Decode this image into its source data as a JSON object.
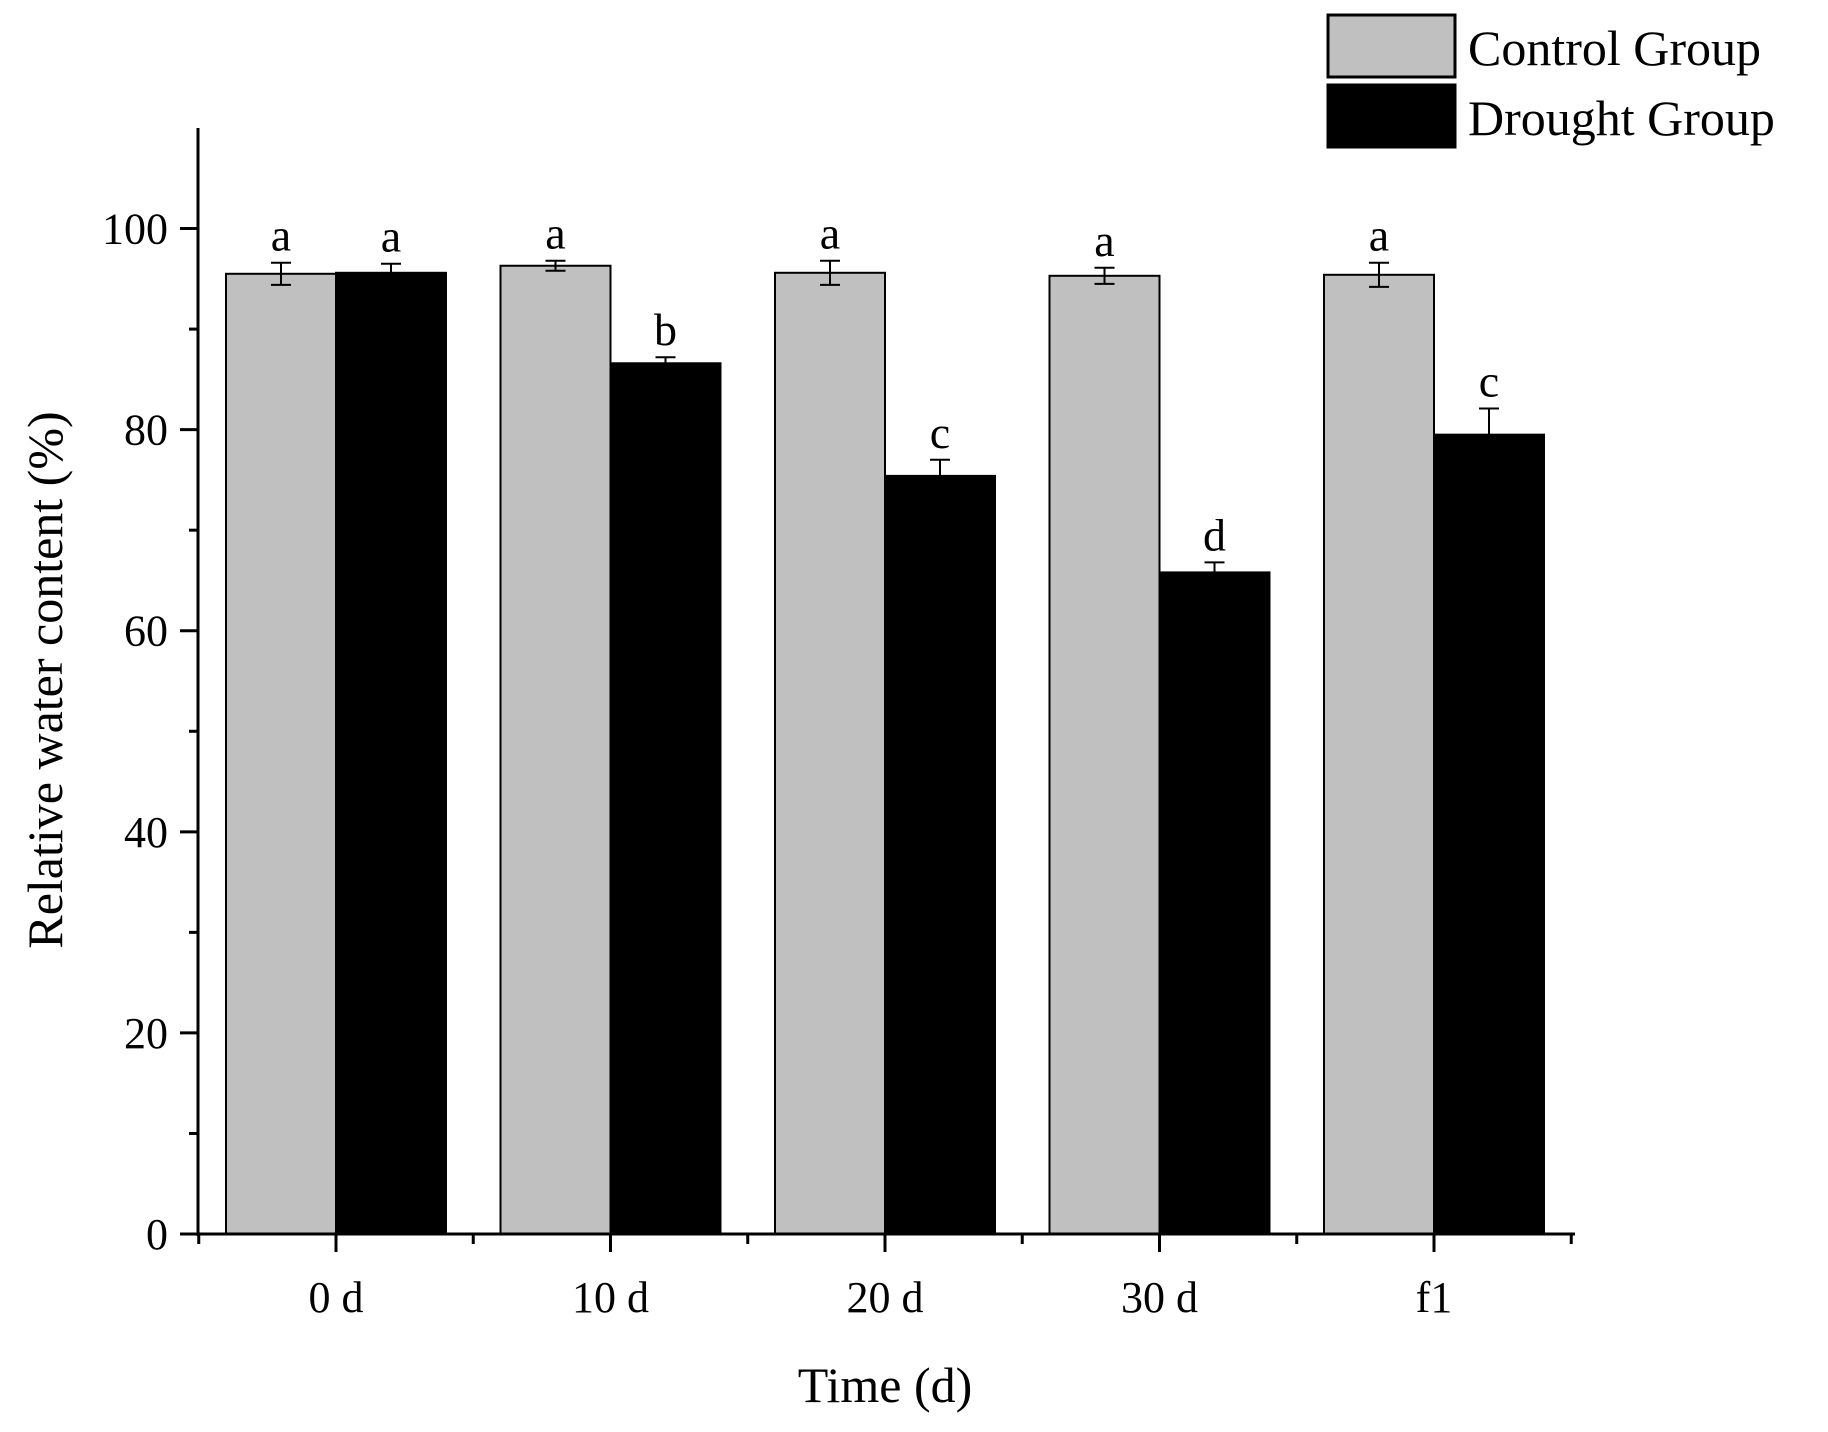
{
  "chart_data": {
    "type": "bar",
    "title": "",
    "xlabel": "Time (d)",
    "ylabel": "Relative water content (%)",
    "ylim": [
      0,
      110
    ],
    "yticks": [
      0,
      20,
      40,
      60,
      80,
      100
    ],
    "ytick_labels": [
      "0",
      "20",
      "40",
      "60",
      "80",
      "100"
    ],
    "categories": [
      "0 d",
      "10 d",
      "20 d",
      "30 d",
      "f1"
    ],
    "series": [
      {
        "name": "Control Group",
        "color": "#c0c0c0",
        "values": [
          95.5,
          96.3,
          95.6,
          95.3,
          95.4
        ],
        "errors": [
          1.1,
          0.5,
          1.2,
          0.8,
          1.2
        ],
        "letters": [
          "a",
          "a",
          "a",
          "a",
          "a"
        ]
      },
      {
        "name": "Drought Group",
        "color": "#000000",
        "values": [
          95.6,
          86.6,
          75.4,
          65.8,
          79.5
        ],
        "errors": [
          0.9,
          0.6,
          1.6,
          1.0,
          2.6
        ],
        "letters": [
          "a",
          "b",
          "c",
          "d",
          "c"
        ]
      }
    ],
    "legend_position": "top-right",
    "grid": false
  }
}
